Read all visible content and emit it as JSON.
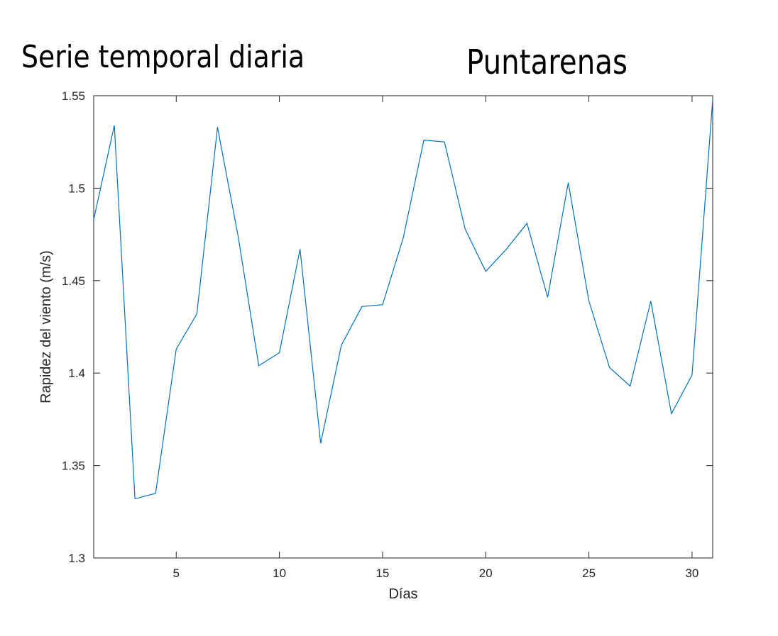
{
  "figure": {
    "title_left": "Serie temporal diaria",
    "title_right": "Puntarenas"
  },
  "chart_data": {
    "type": "line",
    "xlabel": "Días",
    "ylabel": "Rapidez del viento (m/s)",
    "xlim": [
      1,
      31
    ],
    "ylim": [
      1.3,
      1.55
    ],
    "xticks": [
      5,
      10,
      15,
      20,
      25,
      30
    ],
    "xtick_labels": [
      "5",
      "10",
      "15",
      "20",
      "25",
      "30"
    ],
    "yticks": [
      1.3,
      1.35,
      1.4,
      1.45,
      1.5,
      1.55
    ],
    "ytick_labels": [
      "1.3",
      "1.35",
      "1.4",
      "1.45",
      "1.5",
      "1.55"
    ],
    "grid": false,
    "series_color": "#0072bd",
    "axis_color": "#262626",
    "series": [
      {
        "x": [
          1,
          2,
          3,
          4,
          5,
          6,
          7,
          8,
          9,
          10,
          11,
          12,
          13,
          14,
          15,
          16,
          17,
          18,
          19,
          20,
          21,
          22,
          23,
          24,
          25,
          26,
          27,
          28,
          29,
          30,
          31
        ],
        "values": [
          1.483,
          1.534,
          1.332,
          1.335,
          1.413,
          1.432,
          1.533,
          1.474,
          1.404,
          1.411,
          1.467,
          1.362,
          1.415,
          1.436,
          1.437,
          1.473,
          1.526,
          1.525,
          1.478,
          1.455,
          1.467,
          1.481,
          1.441,
          1.503,
          1.439,
          1.403,
          1.393,
          1.439,
          1.378,
          1.399,
          1.548
        ]
      }
    ]
  }
}
